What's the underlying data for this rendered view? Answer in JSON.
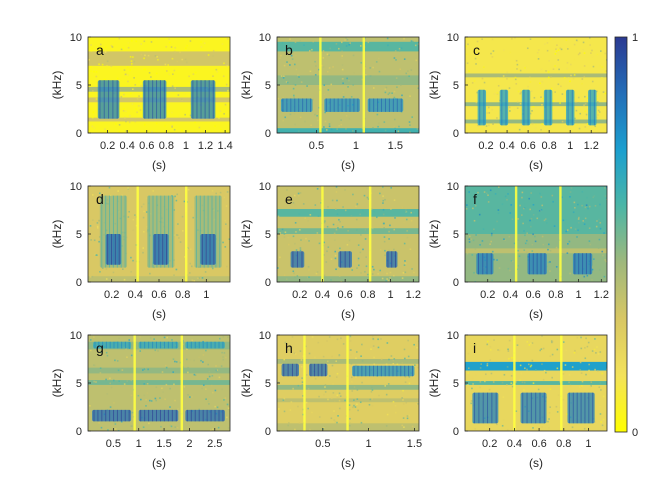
{
  "chart_data": {
    "type": "heatmap",
    "colormap": [
      "#ffff00",
      "#f3e25a",
      "#d8c764",
      "#9fb87c",
      "#4cb6a6",
      "#1b9fcf",
      "#236eb8",
      "#2b3a92"
    ],
    "colorbar": {
      "ticks": [
        "1",
        "0"
      ],
      "range": [
        0,
        1
      ]
    },
    "panels": [
      {
        "label": "a",
        "xlabel": "(s)",
        "ylabel": "(kHz)",
        "xlim": [
          0,
          1.45
        ],
        "ylim": [
          0,
          10
        ],
        "xticks": [
          0.2,
          0.4,
          0.6,
          0.8,
          1,
          1.2,
          1.4
        ],
        "xticklabels": [
          "0.2",
          "0.4",
          "0.6",
          "0.8",
          "1",
          "1.2",
          "1.4"
        ],
        "yticks": [
          0,
          5,
          10
        ],
        "yticklabels": [
          "0",
          "5",
          "10"
        ],
        "background": 0.05,
        "bands": [
          {
            "f": [
              7.0,
              8.5
            ],
            "v": 0.3
          },
          {
            "f": [
              4.3,
              4.8
            ],
            "v": 0.4
          },
          {
            "f": [
              3.2,
              3.7
            ],
            "v": 0.3
          },
          {
            "f": [
              1.2,
              1.6
            ],
            "v": 0.3
          }
        ],
        "vlines": [],
        "calls": [
          {
            "t": [
              0.1,
              0.32
            ],
            "f": [
              1.5,
              5.5
            ],
            "v": 0.8
          },
          {
            "t": [
              0.56,
              0.8
            ],
            "f": [
              1.5,
              5.5
            ],
            "v": 0.8
          },
          {
            "t": [
              1.05,
              1.3
            ],
            "f": [
              1.5,
              5.5
            ],
            "v": 0.8
          }
        ]
      },
      {
        "label": "b",
        "xlabel": "(s)",
        "ylabel": "(kHz)",
        "xlim": [
          0,
          1.8
        ],
        "ylim": [
          0,
          10
        ],
        "xticks": [
          0.5,
          1,
          1.5
        ],
        "xticklabels": [
          "0.5",
          "1",
          "1.5"
        ],
        "yticks": [
          0,
          5,
          10
        ],
        "yticklabels": [
          "0",
          "5",
          "10"
        ],
        "background": 0.35,
        "bands": [
          {
            "f": [
              8.5,
              9.5
            ],
            "v": 0.55
          },
          {
            "f": [
              5.0,
              6.0
            ],
            "v": 0.45
          },
          {
            "f": [
              0,
              0.5
            ],
            "v": 0.6
          }
        ],
        "vlines": [
          0.55,
          1.1
        ],
        "calls": [
          {
            "t": [
              0.05,
              0.45
            ],
            "f": [
              2.2,
              3.6
            ],
            "v": 0.75
          },
          {
            "t": [
              0.6,
              1.05
            ],
            "f": [
              2.2,
              3.6
            ],
            "v": 0.75
          },
          {
            "t": [
              1.15,
              1.6
            ],
            "f": [
              2.2,
              3.6
            ],
            "v": 0.75
          }
        ]
      },
      {
        "label": "c",
        "xlabel": "(s)",
        "ylabel": "(kHz)",
        "xlim": [
          0,
          1.35
        ],
        "ylim": [
          0,
          10
        ],
        "xticks": [
          0.2,
          0.4,
          0.6,
          0.8,
          1,
          1.2
        ],
        "xticklabels": [
          "0.2",
          "0.4",
          "0.6",
          "0.8",
          "1",
          "1.2"
        ],
        "yticks": [
          0,
          5,
          10
        ],
        "yticklabels": [
          "0",
          "5",
          "10"
        ],
        "background": 0.12,
        "bands": [
          {
            "f": [
              5.8,
              6.2
            ],
            "v": 0.4
          },
          {
            "f": [
              2.8,
              3.2
            ],
            "v": 0.45
          },
          {
            "f": [
              1.0,
              1.4
            ],
            "v": 0.45
          }
        ],
        "vlines": [],
        "calls": [
          {
            "t": [
              0.12,
              0.2
            ],
            "f": [
              0.8,
              4.5
            ],
            "v": 0.7
          },
          {
            "t": [
              0.33,
              0.41
            ],
            "f": [
              0.8,
              4.5
            ],
            "v": 0.7
          },
          {
            "t": [
              0.54,
              0.62
            ],
            "f": [
              0.8,
              4.5
            ],
            "v": 0.7
          },
          {
            "t": [
              0.75,
              0.83
            ],
            "f": [
              0.8,
              4.5
            ],
            "v": 0.7
          },
          {
            "t": [
              0.96,
              1.04
            ],
            "f": [
              0.8,
              4.5
            ],
            "v": 0.7
          },
          {
            "t": [
              1.17,
              1.25
            ],
            "f": [
              0.8,
              4.5
            ],
            "v": 0.7
          }
        ]
      },
      {
        "label": "d",
        "xlabel": "(s)",
        "ylabel": "(kHz)",
        "xlim": [
          0,
          1.2
        ],
        "ylim": [
          0,
          10
        ],
        "xticks": [
          0.2,
          0.4,
          0.6,
          0.8,
          1
        ],
        "xticklabels": [
          "0.2",
          "0.4",
          "0.6",
          "0.8",
          "1"
        ],
        "yticks": [
          0,
          5,
          10
        ],
        "yticklabels": [
          "0",
          "5",
          "10"
        ],
        "background": 0.28,
        "bands": [
          {
            "f": [
              0,
              0.6
            ],
            "v": 0.35
          }
        ],
        "vlines": [
          0.42,
          0.83
        ],
        "calls": [
          {
            "t": [
              0.1,
              0.33
            ],
            "f": [
              1.5,
              9.0
            ],
            "v": 0.45
          },
          {
            "t": [
              0.15,
              0.28
            ],
            "f": [
              1.8,
              5.0
            ],
            "v": 0.85
          },
          {
            "t": [
              0.5,
              0.73
            ],
            "f": [
              1.5,
              9.0
            ],
            "v": 0.45
          },
          {
            "t": [
              0.55,
              0.68
            ],
            "f": [
              1.8,
              5.0
            ],
            "v": 0.85
          },
          {
            "t": [
              0.9,
              1.13
            ],
            "f": [
              1.5,
              9.0
            ],
            "v": 0.45
          },
          {
            "t": [
              0.95,
              1.08
            ],
            "f": [
              1.8,
              5.0
            ],
            "v": 0.85
          }
        ]
      },
      {
        "label": "e",
        "xlabel": "(s)",
        "ylabel": "(kHz)",
        "xlim": [
          0,
          1.25
        ],
        "ylim": [
          0,
          10
        ],
        "xticks": [
          0.2,
          0.4,
          0.6,
          0.8,
          1,
          1.2
        ],
        "xticklabels": [
          "0.2",
          "0.4",
          "0.6",
          "0.8",
          "1",
          "1.2"
        ],
        "yticks": [
          0,
          5,
          10
        ],
        "yticklabels": [
          "0",
          "5",
          "10"
        ],
        "background": 0.32,
        "bands": [
          {
            "f": [
              6.8,
              7.6
            ],
            "v": 0.55
          },
          {
            "f": [
              5.0,
              5.6
            ],
            "v": 0.5
          },
          {
            "f": [
              0,
              0.6
            ],
            "v": 0.45
          }
        ],
        "vlines": [
          0.4,
          0.82
        ],
        "calls": [
          {
            "t": [
              0.12,
              0.24
            ],
            "f": [
              1.5,
              3.2
            ],
            "v": 0.85
          },
          {
            "t": [
              0.54,
              0.66
            ],
            "f": [
              1.5,
              3.2
            ],
            "v": 0.85
          },
          {
            "t": [
              0.96,
              1.06
            ],
            "f": [
              1.5,
              3.2
            ],
            "v": 0.85
          }
        ]
      },
      {
        "label": "f",
        "xlabel": "(s)",
        "ylabel": "(kHz)",
        "xlim": [
          0,
          1.25
        ],
        "ylim": [
          0,
          10
        ],
        "xticks": [
          0.2,
          0.4,
          0.6,
          0.8,
          1,
          1.2
        ],
        "xticklabels": [
          "0.2",
          "0.4",
          "0.6",
          "0.8",
          "1",
          "1.2"
        ],
        "yticks": [
          0,
          5,
          10
        ],
        "yticklabels": [
          "0",
          "5",
          "10"
        ],
        "background": 0.45,
        "bands": [
          {
            "f": [
              5.0,
              10
            ],
            "v": 0.55
          },
          {
            "f": [
              3.0,
              3.5
            ],
            "v": 0.35
          }
        ],
        "vlines": [
          0.45,
          0.84
        ],
        "calls": [
          {
            "t": [
              0.1,
              0.25
            ],
            "f": [
              0.8,
              3.0
            ],
            "v": 0.8
          },
          {
            "t": [
              0.55,
              0.72
            ],
            "f": [
              0.8,
              3.0
            ],
            "v": 0.8
          },
          {
            "t": [
              0.95,
              1.12
            ],
            "f": [
              0.8,
              3.0
            ],
            "v": 0.8
          }
        ]
      },
      {
        "label": "g",
        "xlabel": "(s)",
        "ylabel": "(kHz)",
        "xlim": [
          0,
          2.8
        ],
        "ylim": [
          0,
          10
        ],
        "xticks": [
          0.5,
          1,
          1.5,
          2,
          2.5
        ],
        "xticklabels": [
          "0.5",
          "1",
          "1.5",
          "2",
          "2.5"
        ],
        "yticks": [
          0,
          5,
          10
        ],
        "yticklabels": [
          "0",
          "5",
          "10"
        ],
        "background": 0.35,
        "bands": [
          {
            "f": [
              8.5,
              9.3
            ],
            "v": 0.45
          },
          {
            "f": [
              6.0,
              6.6
            ],
            "v": 0.45
          },
          {
            "f": [
              4.8,
              5.3
            ],
            "v": 0.5
          }
        ],
        "vlines": [
          0.92,
          1.85
        ],
        "calls": [
          {
            "t": [
              0.08,
              0.85
            ],
            "f": [
              1.0,
              2.2
            ],
            "v": 0.85
          },
          {
            "t": [
              1.0,
              1.78
            ],
            "f": [
              1.0,
              2.2
            ],
            "v": 0.85
          },
          {
            "t": [
              1.92,
              2.7
            ],
            "f": [
              1.0,
              2.2
            ],
            "v": 0.85
          },
          {
            "t": [
              0.1,
              0.85
            ],
            "f": [
              8.6,
              9.3
            ],
            "v": 0.65
          },
          {
            "t": [
              1.0,
              1.78
            ],
            "f": [
              8.6,
              9.3
            ],
            "v": 0.65
          },
          {
            "t": [
              1.92,
              2.7
            ],
            "f": [
              8.6,
              9.3
            ],
            "v": 0.65
          }
        ]
      },
      {
        "label": "h",
        "xlabel": "(s)",
        "ylabel": "(kHz)",
        "xlim": [
          0,
          1.55
        ],
        "ylim": [
          0,
          10
        ],
        "xticks": [
          0.5,
          1,
          1.5
        ],
        "xticklabels": [
          "0.5",
          "1",
          "1.5"
        ],
        "yticks": [
          0,
          5,
          10
        ],
        "yticklabels": [
          "0",
          "5",
          "10"
        ],
        "background": 0.25,
        "bands": [
          {
            "f": [
              7.0,
              7.5
            ],
            "v": 0.4
          },
          {
            "f": [
              4.3,
              4.8
            ],
            "v": 0.45
          },
          {
            "f": [
              3.0,
              3.4
            ],
            "v": 0.35
          },
          {
            "f": [
              0,
              0.8
            ],
            "v": 0.35
          }
        ],
        "vlines": [
          0.3,
          0.77
        ],
        "calls": [
          {
            "t": [
              0.05,
              0.24
            ],
            "f": [
              5.7,
              7.0
            ],
            "v": 0.85
          },
          {
            "t": [
              0.35,
              0.55
            ],
            "f": [
              5.7,
              7.0
            ],
            "v": 0.85
          },
          {
            "t": [
              0.82,
              1.5
            ],
            "f": [
              5.7,
              6.8
            ],
            "v": 0.75
          }
        ]
      },
      {
        "label": "i",
        "xlabel": "(s)",
        "ylabel": "(kHz)",
        "xlim": [
          0,
          1.15
        ],
        "ylim": [
          0,
          10
        ],
        "xticks": [
          0.2,
          0.4,
          0.6,
          0.8,
          1
        ],
        "xticklabels": [
          "0.2",
          "0.4",
          "0.6",
          "0.8",
          "1"
        ],
        "yticks": [
          0,
          5,
          10
        ],
        "yticklabels": [
          "0",
          "5",
          "10"
        ],
        "background": 0.2,
        "bands": [
          {
            "f": [
              6.3,
              7.2
            ],
            "v": 0.7
          },
          {
            "f": [
              4.8,
              5.2
            ],
            "v": 0.55
          }
        ],
        "vlines": [
          0.4,
          0.78
        ],
        "calls": [
          {
            "t": [
              0.06,
              0.27
            ],
            "f": [
              0.8,
              4.0
            ],
            "v": 0.8
          },
          {
            "t": [
              0.45,
              0.66
            ],
            "f": [
              0.8,
              4.0
            ],
            "v": 0.8
          },
          {
            "t": [
              0.83,
              1.05
            ],
            "f": [
              0.8,
              4.0
            ],
            "v": 0.8
          }
        ]
      }
    ]
  }
}
